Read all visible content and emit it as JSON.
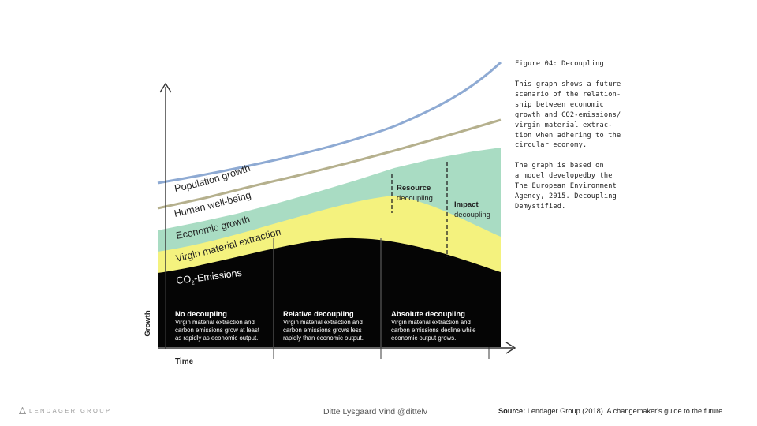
{
  "figure": {
    "title": "Figure 04: Decoupling",
    "description": "This graph shows a future\nscenario of the relation-\nship between economic\ngrowth and CO2-emissions/\nvirgin material extrac-\ntion when adhering to the\ncircular economy.",
    "reference": "The graph is based on\na model developedby the\nThe European Environment\nAgency, 2015. Decoupling\nDemystified."
  },
  "axes": {
    "y_label": "Growth",
    "x_label": "Time"
  },
  "curves": {
    "population": "Population growth",
    "wellbeing": "Human well-being",
    "economic": "Economic growth",
    "virgin": "Virgin material extraction",
    "co2_main": "CO",
    "co2_sub": "2",
    "co2_rest": "-Emissions"
  },
  "markers": {
    "resource": [
      "Resource",
      "decoupling"
    ],
    "impact": [
      "Impact",
      "decoupling"
    ]
  },
  "phases": [
    {
      "title": "No decoupling",
      "lines": [
        "Virgin material extraction and",
        "carbon emissions grow at least",
        "as rapidly as economic output."
      ]
    },
    {
      "title": "Relative decoupling",
      "lines": [
        "Virgin material extraction and",
        "carbon emissions grows less",
        "rapidly than economic output."
      ]
    },
    {
      "title": "Absolute decoupling",
      "lines": [
        "Virgin material extraction and",
        "carbon emissions decline while",
        "economic output grows."
      ]
    }
  ],
  "colors": {
    "population": "#8eaad3",
    "wellbeing": "#b5b08d",
    "economic": "#a9dcc3",
    "virgin": "#f4f27e",
    "co2": "#050505",
    "axis": "#333333"
  },
  "footer": {
    "logo": "LENDAGER GROUP",
    "author": "Ditte Lysgaard Vind @dittelv",
    "source_label": "Source:",
    "source_text": " Lendager Group (2018). A changemaker's guide to the future"
  }
}
